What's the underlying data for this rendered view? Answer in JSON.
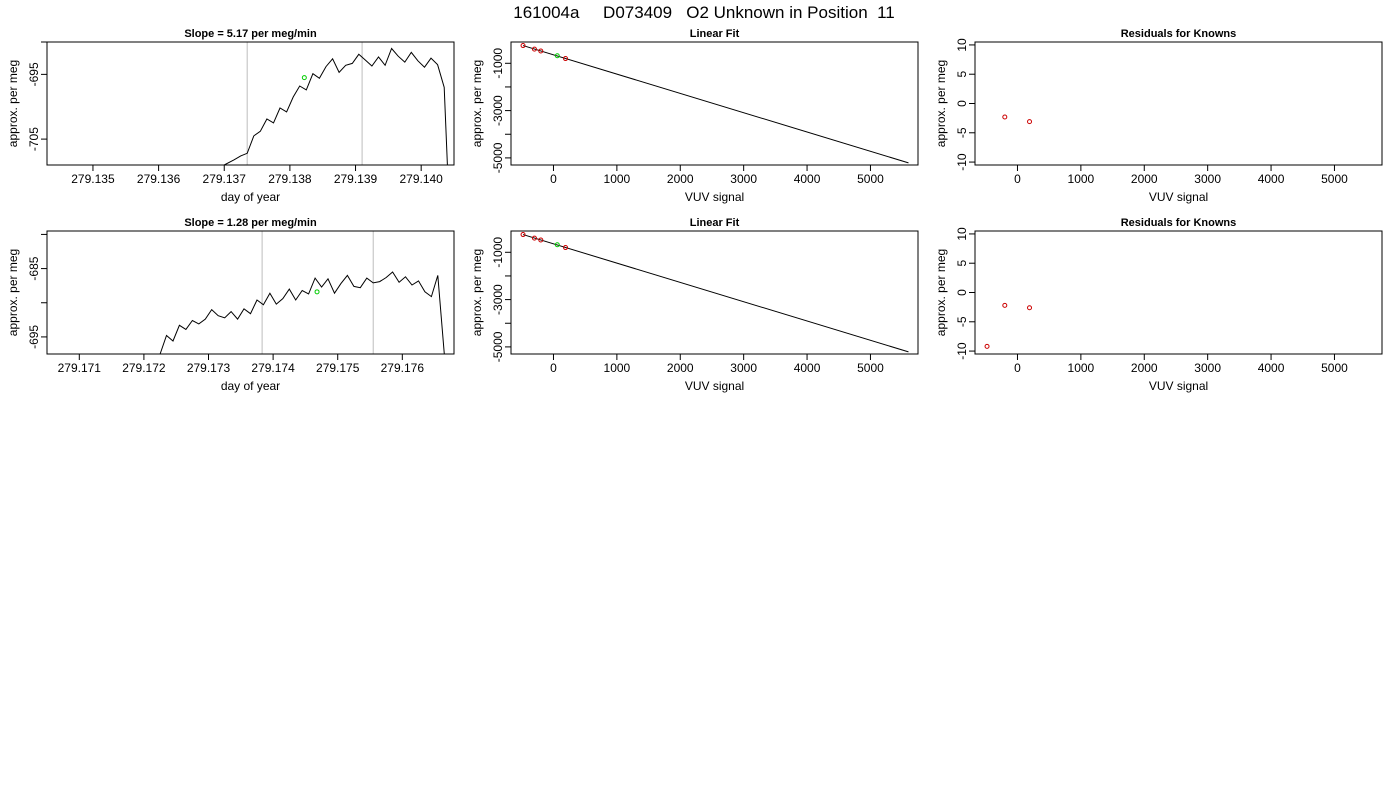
{
  "page_title": "161004a     D073409   O2 Unknown in Position  11",
  "colors": {
    "line": "#000000",
    "known_point": "#cc0000",
    "unknown_point": "#00cc00",
    "marker": "#c8c8c8"
  },
  "chart_data": [
    {
      "type": "line",
      "title": "Slope =  5.17  per meg/min",
      "xlabel": "day of year",
      "ylabel": "approx. per meg",
      "xlim": [
        279.1343,
        279.1405
      ],
      "ylim": [
        -709,
        -690
      ],
      "xticks": [
        "279.135",
        "279.136",
        "279.137",
        "279.138",
        "279.139",
        "279.140"
      ],
      "xtick_values": [
        279.135,
        279.136,
        279.137,
        279.138,
        279.139,
        279.14
      ],
      "yticks": [
        "-705",
        "-695"
      ],
      "ytick_values": [
        -705,
        -695
      ],
      "extra_yticks": [
        -690
      ],
      "vlines": [
        279.13735,
        279.1391
      ],
      "series": [
        {
          "x": [
            279.137,
            279.13715,
            279.13725,
            279.13735,
            279.13745,
            279.13755,
            279.13765,
            279.13775,
            279.13785,
            279.13795,
            279.13805,
            279.13815,
            279.13825,
            279.13835,
            279.13845,
            279.13855,
            279.13865,
            279.13875,
            279.13885,
            279.13895,
            279.13905,
            279.13915,
            279.13925,
            279.13935,
            279.13945,
            279.13955,
            279.13965,
            279.13975,
            279.13985,
            279.13995,
            279.14005,
            279.14015,
            279.14025,
            279.14035,
            279.1404
          ],
          "y": [
            -709,
            -708.2,
            -707.6,
            -707.2,
            -704.5,
            -703.8,
            -701.9,
            -702.5,
            -700.2,
            -700.8,
            -698.5,
            -696.8,
            -697.4,
            -694.9,
            -695.6,
            -693.8,
            -692.6,
            -694.7,
            -693.6,
            -693.3,
            -691.9,
            -692.8,
            -693.7,
            -692.3,
            -693.6,
            -691.0,
            -692.2,
            -693.1,
            -691.6,
            -692.9,
            -693.9,
            -692.5,
            -693.5,
            -697.0,
            -709
          ]
        }
      ],
      "marker_point": {
        "x": 279.13822,
        "y": -695.5
      }
    },
    {
      "type": "scatter",
      "title": "Linear Fit",
      "xlabel": "VUV signal",
      "ylabel": "approx. per meg",
      "xlim": [
        -670,
        5750
      ],
      "ylim": [
        -5300,
        -100
      ],
      "xticks": [
        "0",
        "1000",
        "2000",
        "3000",
        "4000",
        "5000"
      ],
      "xtick_values": [
        0,
        1000,
        2000,
        3000,
        4000,
        5000
      ],
      "yticks": [
        "-1000",
        "-3000",
        "-5000"
      ],
      "ytick_values": [
        -1000,
        -3000,
        -5000
      ],
      "extra_yticks": [
        -2000,
        -4000
      ],
      "fit_line": {
        "x": [
          -480,
          5600
        ],
        "y": [
          -250,
          -5210
        ]
      },
      "known_points": {
        "x": [
          -480,
          -300,
          -200,
          190
        ],
        "y": [
          -250,
          -400,
          -480,
          -800
        ]
      },
      "unknown_points": {
        "x": [
          60
        ],
        "y": [
          -680
        ]
      }
    },
    {
      "type": "scatter",
      "title": "Residuals for Knowns",
      "xlabel": "VUV signal",
      "ylabel": "approx. per meg",
      "xlim": [
        -670,
        5750
      ],
      "ylim": [
        -10.5,
        10.5
      ],
      "xticks": [
        "0",
        "1000",
        "2000",
        "3000",
        "4000",
        "5000"
      ],
      "xtick_values": [
        0,
        1000,
        2000,
        3000,
        4000,
        5000
      ],
      "yticks": [
        "-10",
        "-5",
        "0",
        "5",
        "10"
      ],
      "ytick_values": [
        -10,
        -5,
        0,
        5,
        10
      ],
      "extra_yticks": [],
      "known_points": {
        "x": [
          -200,
          190
        ],
        "y": [
          -2.3,
          -3.1
        ]
      }
    },
    {
      "type": "line",
      "title": "Slope =  1.28  per meg/min",
      "xlabel": "day of year",
      "ylabel": "approx. per meg",
      "xlim": [
        279.1705,
        279.1768
      ],
      "ylim": [
        -697.5,
        -679.5
      ],
      "xticks": [
        "279.171",
        "279.172",
        "279.173",
        "279.174",
        "279.175",
        "279.176"
      ],
      "xtick_values": [
        279.171,
        279.172,
        279.173,
        279.174,
        279.175,
        279.176
      ],
      "yticks": [
        "-685",
        "-695"
      ],
      "ytick_values": [
        -685,
        -695
      ],
      "extra_yticks": [
        -680,
        -690
      ],
      "vlines": [
        279.17383,
        279.17555
      ],
      "series": [
        {
          "x": [
            279.17225,
            279.17235,
            279.17245,
            279.17255,
            279.17265,
            279.17275,
            279.17285,
            279.17295,
            279.17305,
            279.17315,
            279.17325,
            279.17335,
            279.17345,
            279.17355,
            279.17365,
            279.17375,
            279.17385,
            279.17395,
            279.17405,
            279.17415,
            279.17425,
            279.17435,
            279.17445,
            279.17455,
            279.17465,
            279.17475,
            279.17485,
            279.17495,
            279.17505,
            279.17515,
            279.17525,
            279.17535,
            279.17545,
            279.17555,
            279.17565,
            279.17575,
            279.17585,
            279.17595,
            279.17605,
            279.17615,
            279.17625,
            279.17635,
            279.17645,
            279.17655,
            279.17665
          ],
          "y": [
            -697.5,
            -694.8,
            -695.6,
            -693.3,
            -693.9,
            -692.6,
            -693.1,
            -692.4,
            -691.0,
            -691.9,
            -692.2,
            -691.3,
            -692.4,
            -690.9,
            -691.6,
            -689.6,
            -690.3,
            -688.6,
            -690.2,
            -689.4,
            -688.0,
            -689.6,
            -688.2,
            -688.7,
            -686.4,
            -687.7,
            -686.5,
            -688.6,
            -687.2,
            -686.0,
            -687.6,
            -687.8,
            -686.4,
            -687.1,
            -686.9,
            -686.3,
            -685.5,
            -687.0,
            -686.2,
            -687.4,
            -686.8,
            -688.4,
            -689.1,
            -686.0,
            -697.5
          ]
        }
      ],
      "marker_point": {
        "x": 279.17468,
        "y": -688.4
      }
    },
    {
      "type": "scatter",
      "title": "Linear Fit",
      "xlabel": "VUV signal",
      "ylabel": "approx. per meg",
      "xlim": [
        -670,
        5750
      ],
      "ylim": [
        -5300,
        -100
      ],
      "xticks": [
        "0",
        "1000",
        "2000",
        "3000",
        "4000",
        "5000"
      ],
      "xtick_values": [
        0,
        1000,
        2000,
        3000,
        4000,
        5000
      ],
      "yticks": [
        "-1000",
        "-3000",
        "-5000"
      ],
      "ytick_values": [
        -1000,
        -3000,
        -5000
      ],
      "extra_yticks": [
        -2000,
        -4000
      ],
      "fit_line": {
        "x": [
          -480,
          5600
        ],
        "y": [
          -250,
          -5210
        ]
      },
      "known_points": {
        "x": [
          -480,
          -300,
          -200,
          190
        ],
        "y": [
          -250,
          -400,
          -480,
          -800
        ]
      },
      "unknown_points": {
        "x": [
          60
        ],
        "y": [
          -680
        ]
      }
    },
    {
      "type": "scatter",
      "title": "Residuals for Knowns",
      "xlabel": "VUV signal",
      "ylabel": "approx. per meg",
      "xlim": [
        -670,
        5750
      ],
      "ylim": [
        -10.5,
        10.5
      ],
      "xticks": [
        "0",
        "1000",
        "2000",
        "3000",
        "4000",
        "5000"
      ],
      "xtick_values": [
        0,
        1000,
        2000,
        3000,
        4000,
        5000
      ],
      "yticks": [
        "-10",
        "-5",
        "0",
        "5",
        "10"
      ],
      "ytick_values": [
        -10,
        -5,
        0,
        5,
        10
      ],
      "extra_yticks": [],
      "known_points": {
        "x": [
          -480,
          -200,
          190
        ],
        "y": [
          -9.2,
          -2.2,
          -2.6
        ]
      }
    }
  ]
}
